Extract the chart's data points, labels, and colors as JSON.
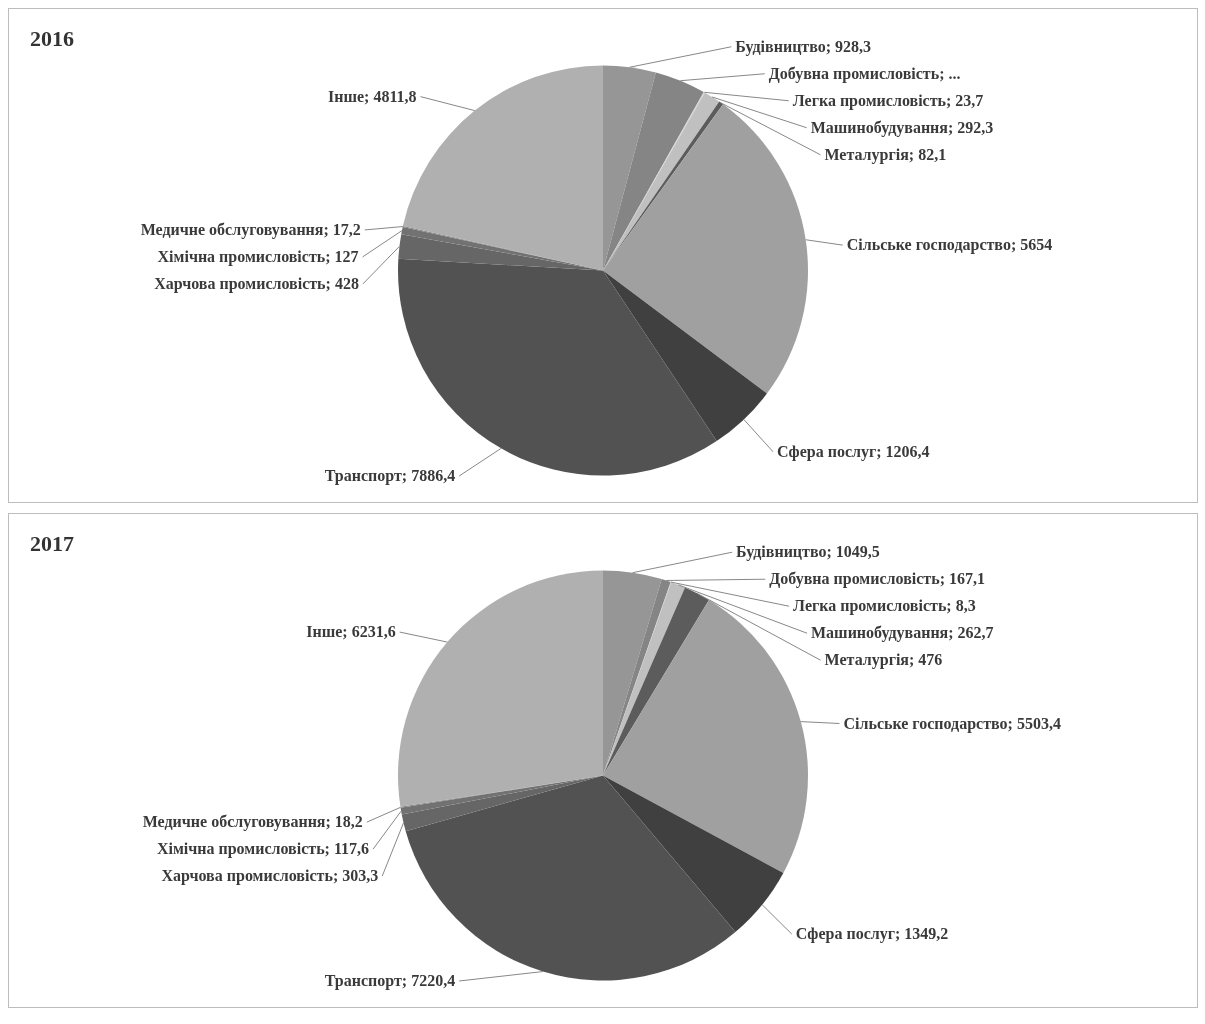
{
  "chart_data": [
    {
      "type": "pie",
      "title": "2016",
      "categories": [
        "Будівництво",
        "Добувна промисловість",
        "Легка промисловість",
        "Машинобудування",
        "Металургія",
        "Сільське господарство",
        "Сфера послуг",
        "Транспорт",
        "Харчова промисловість",
        "Хімічна промисловість",
        "Медичне обслуговування",
        "Інше"
      ],
      "values": [
        928.3,
        900,
        23.7,
        292.3,
        82.1,
        5654,
        1206.4,
        7886.4,
        428,
        127,
        17.2,
        4811.8
      ],
      "value_labels": [
        "928,3",
        "...",
        "23,7",
        "292,3",
        "82,1",
        "5654",
        "1206,4",
        "7886,4",
        "428",
        "127",
        "17,2",
        "4811,8"
      ],
      "colors": [
        "#969696",
        "#858585",
        "#d2d2d2",
        "#c0c0c0",
        "#5c5c5c",
        "#a0a0a0",
        "#404040",
        "#525252",
        "#666666",
        "#727272",
        "#7c7c7c",
        "#b0b0b0"
      ]
    },
    {
      "type": "pie",
      "title": "2017",
      "categories": [
        "Будівництво",
        "Добувна промисловість",
        "Легка промисловість",
        "Машинобудування",
        "Металургія",
        "Сільське господарство",
        "Сфера послуг",
        "Транспорт",
        "Харчова промисловість",
        "Хімічна промисловість",
        "Медичне обслуговування",
        "Інше"
      ],
      "values": [
        1049.5,
        167.1,
        8.3,
        262.7,
        476,
        5503.4,
        1349.2,
        7220.4,
        303.3,
        117.6,
        18.2,
        6231.6
      ],
      "value_labels": [
        "1049,5",
        "167,1",
        "8,3",
        "262,7",
        "476",
        "5503,4",
        "1349,2",
        "7220,4",
        "303,3",
        "117,6",
        "18,2",
        "6231,6"
      ],
      "colors": [
        "#969696",
        "#858585",
        "#d2d2d2",
        "#c0c0c0",
        "#5c5c5c",
        "#a0a0a0",
        "#404040",
        "#525252",
        "#666666",
        "#727272",
        "#7c7c7c",
        "#b0b0b0"
      ]
    }
  ]
}
